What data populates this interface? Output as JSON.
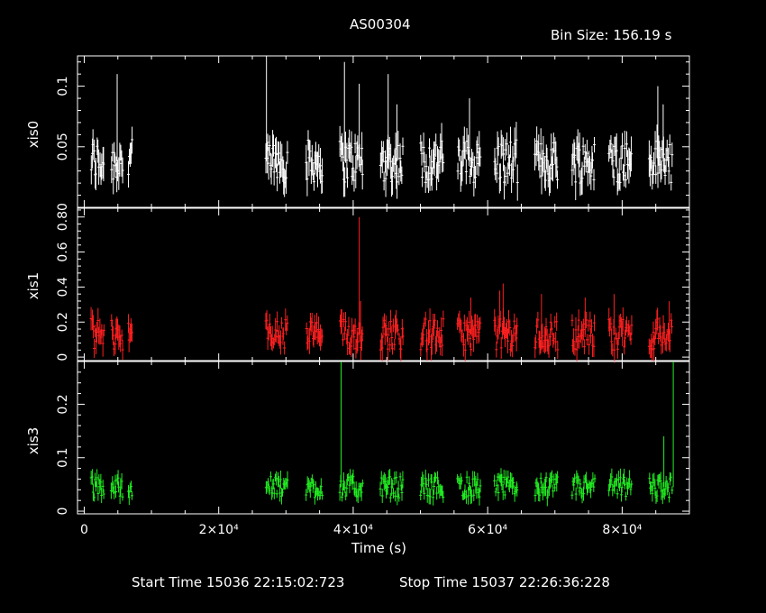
{
  "title": "AS00304",
  "bin_size": "Bin Size: 156.19 s",
  "x_label": "Time (s)",
  "start_time": "Start Time 15036 22:15:02:723",
  "stop_time": "Stop Time 15037 22:26:36:228",
  "colors": {
    "xis0": "#ffffff",
    "xis1": "#ff2020",
    "xis3": "#22ee22",
    "axes": "#ffffff",
    "background": "#000000"
  },
  "chart_data": [
    {
      "type": "scatter",
      "name": "xis0",
      "ylabel": "xis0",
      "xlim": [
        -1000,
        90000
      ],
      "ylim": [
        0,
        0.125
      ],
      "x_ticks": [
        0,
        20000,
        40000,
        60000,
        80000
      ],
      "y_ticks": [
        0.05,
        0.1
      ],
      "y_tick_labels": [
        "0.05",
        "0.1"
      ],
      "segments": [
        [
          1000,
          3000
        ],
        [
          4000,
          5800
        ],
        [
          6500,
          7200
        ],
        [
          27000,
          30300
        ],
        [
          33000,
          35500
        ],
        [
          38000,
          41500
        ],
        [
          44000,
          47500
        ],
        [
          50000,
          53500
        ],
        [
          55500,
          59000
        ],
        [
          61000,
          64500
        ],
        [
          67000,
          70500
        ],
        [
          72500,
          76000
        ],
        [
          78000,
          81500
        ],
        [
          84000,
          87500
        ]
      ],
      "baseline": 0.038,
      "spread": 0.018,
      "spikes": [
        [
          4900,
          0.11
        ],
        [
          27100,
          0.125
        ],
        [
          38700,
          0.12
        ],
        [
          40900,
          0.102
        ],
        [
          45200,
          0.11
        ],
        [
          46500,
          0.085
        ],
        [
          57300,
          0.09
        ],
        [
          85300,
          0.1
        ],
        [
          86100,
          0.085
        ]
      ]
    },
    {
      "type": "scatter",
      "name": "xis1",
      "ylabel": "xis1",
      "xlim": [
        -1000,
        90000
      ],
      "ylim": [
        -0.02,
        0.85
      ],
      "x_ticks": [
        0,
        20000,
        40000,
        60000,
        80000
      ],
      "y_ticks": [
        0,
        0.2,
        0.4,
        0.6,
        0.8
      ],
      "y_tick_labels": [
        "0",
        "0.2",
        "0.4",
        "0.6",
        "0.80"
      ],
      "segments": [
        [
          1000,
          3000
        ],
        [
          4000,
          5800
        ],
        [
          6500,
          7200
        ],
        [
          27000,
          30300
        ],
        [
          33000,
          35500
        ],
        [
          38000,
          41500
        ],
        [
          44000,
          47500
        ],
        [
          50000,
          53500
        ],
        [
          55500,
          59000
        ],
        [
          61000,
          64500
        ],
        [
          67000,
          70500
        ],
        [
          72500,
          76000
        ],
        [
          78000,
          81500
        ],
        [
          84000,
          87500
        ]
      ],
      "baseline": 0.13,
      "spread": 0.09,
      "spikes": [
        [
          40900,
          0.8
        ],
        [
          41100,
          0.32
        ],
        [
          57500,
          0.34
        ],
        [
          61800,
          0.38
        ],
        [
          62300,
          0.42
        ],
        [
          68000,
          0.36
        ],
        [
          74500,
          0.34
        ],
        [
          78800,
          0.36
        ],
        [
          87000,
          0.32
        ]
      ]
    },
    {
      "type": "scatter",
      "name": "xis3",
      "ylabel": "xis3",
      "xlim": [
        -1000,
        90000
      ],
      "ylim": [
        -0.005,
        0.28
      ],
      "x_ticks": [
        0,
        20000,
        40000,
        60000,
        80000
      ],
      "x_tick_labels": [
        "0",
        "2×10⁴",
        "4×10⁴",
        "6×10⁴",
        "8×10⁴"
      ],
      "y_ticks": [
        0,
        0.1,
        0.2
      ],
      "y_tick_labels": [
        "0",
        "0.1",
        "0.2"
      ],
      "segments": [
        [
          1000,
          3000
        ],
        [
          4000,
          5800
        ],
        [
          6500,
          7200
        ],
        [
          27000,
          30300
        ],
        [
          33000,
          35500
        ],
        [
          38000,
          41500
        ],
        [
          44000,
          47500
        ],
        [
          50000,
          53500
        ],
        [
          55500,
          59000
        ],
        [
          61000,
          64500
        ],
        [
          67000,
          70500
        ],
        [
          72500,
          76000
        ],
        [
          78000,
          81500
        ],
        [
          84000,
          87500
        ]
      ],
      "baseline": 0.045,
      "spread": 0.02,
      "spikes": [
        [
          38200,
          0.28
        ],
        [
          86200,
          0.14
        ],
        [
          87600,
          0.28
        ]
      ]
    }
  ]
}
